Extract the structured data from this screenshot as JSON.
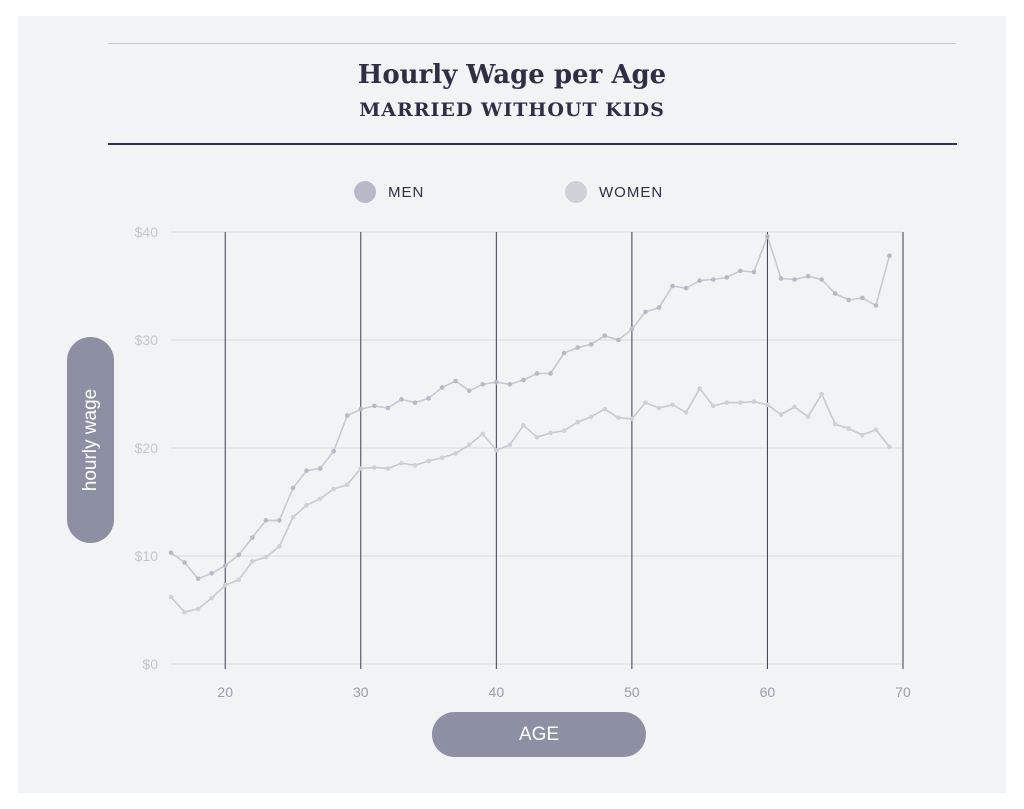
{
  "colors": {
    "background": "#f2f3f5",
    "dark": "#2e2f45",
    "pill": "#8d8fa3",
    "men_marker": "#b8b9c6",
    "women_marker": "#cfd0d8",
    "series_line": "#c8c9d1",
    "gridline": "#dadbe0",
    "vertical_line": "#3a3b52"
  },
  "legend": {
    "men": "MEN",
    "women": "WOMEN"
  },
  "chart_data": {
    "type": "line",
    "title": "Hourly Wage per Age",
    "subtitle": "MARRIED WITHOUT KIDS",
    "xlabel": "AGE",
    "ylabel": "hourly wage",
    "xlim": [
      16,
      70
    ],
    "ylim": [
      0,
      40
    ],
    "x_ticks": [
      20,
      30,
      40,
      50,
      60,
      70
    ],
    "x_tick_labels": [
      "20",
      "30",
      "40",
      "50",
      "60",
      "70"
    ],
    "y_ticks": [
      0,
      10,
      20,
      30,
      40
    ],
    "y_tick_labels": [
      "$0",
      "$10",
      "$20",
      "$30",
      "$40"
    ],
    "grid": true,
    "legend_position": "top-center",
    "x": [
      16,
      17,
      18,
      19,
      20,
      21,
      22,
      23,
      24,
      25,
      26,
      27,
      28,
      29,
      30,
      31,
      32,
      33,
      34,
      35,
      36,
      37,
      38,
      39,
      40,
      41,
      42,
      43,
      44,
      45,
      46,
      47,
      48,
      49,
      50,
      51,
      52,
      53,
      54,
      55,
      56,
      57,
      58,
      59,
      60,
      61,
      62,
      63,
      64,
      65,
      66,
      67,
      68,
      69
    ],
    "series": [
      {
        "name": "MEN",
        "values": [
          10.3,
          9.4,
          7.9,
          8.4,
          9.1,
          10.1,
          11.7,
          13.3,
          13.3,
          16.3,
          17.9,
          18.1,
          19.7,
          23.0,
          23.6,
          23.9,
          23.7,
          24.5,
          24.2,
          24.6,
          25.6,
          26.2,
          25.3,
          25.9,
          26.1,
          25.9,
          26.3,
          26.9,
          26.9,
          28.8,
          29.3,
          29.6,
          30.4,
          30.0,
          31.0,
          32.6,
          33.0,
          35.0,
          34.8,
          35.5,
          35.6,
          35.8,
          36.4,
          36.3,
          39.6,
          35.7,
          35.6,
          35.9,
          35.6,
          34.3,
          33.7,
          33.9,
          33.2,
          37.8
        ]
      },
      {
        "name": "WOMEN",
        "values": [
          6.2,
          4.8,
          5.1,
          6.1,
          7.3,
          7.8,
          9.5,
          9.9,
          10.9,
          13.6,
          14.7,
          15.3,
          16.2,
          16.6,
          18.1,
          18.2,
          18.1,
          18.6,
          18.4,
          18.8,
          19.1,
          19.5,
          20.3,
          21.3,
          19.8,
          20.3,
          22.1,
          21.0,
          21.4,
          21.6,
          22.4,
          22.9,
          23.6,
          22.8,
          22.7,
          24.2,
          23.7,
          24.0,
          23.3,
          25.5,
          23.9,
          24.2,
          24.2,
          24.3,
          24.0,
          23.1,
          23.8,
          22.9,
          25.0,
          22.2,
          21.8,
          21.2,
          21.7,
          20.1
        ]
      }
    ]
  }
}
